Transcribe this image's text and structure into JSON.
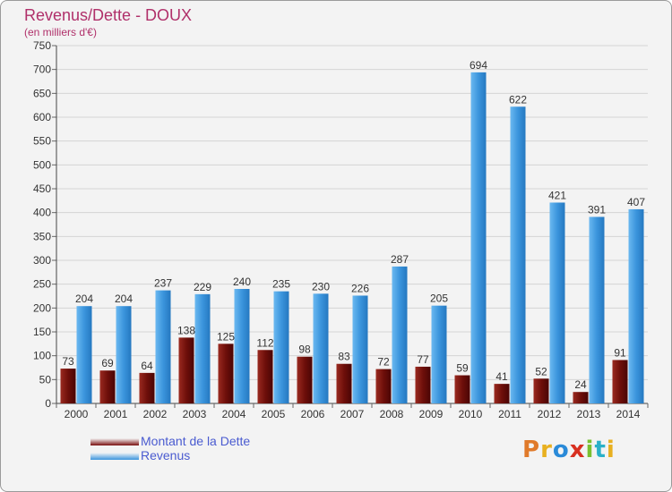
{
  "header": {
    "title": "Revenus/Dette - DOUX",
    "subtitle": "(en milliers d'€)"
  },
  "legend": {
    "items": [
      {
        "label": "Montant de la Dette",
        "color": "#7a1010"
      },
      {
        "label": "Revenus",
        "color": "#3b95dd"
      }
    ]
  },
  "logo": {
    "text": "Proxiti",
    "colors": [
      "#e07a2a",
      "#e8b020",
      "#2a8ad8",
      "#d83020",
      "#7ac030",
      "#2ab0c8",
      "#e8b020"
    ]
  },
  "chart_data": {
    "type": "bar",
    "categories": [
      "2000",
      "2001",
      "2002",
      "2003",
      "2004",
      "2005",
      "2006",
      "2007",
      "2008",
      "2009",
      "2010",
      "2011",
      "2012",
      "2013",
      "2014"
    ],
    "series": [
      {
        "name": "Montant de la Dette",
        "color": "#7a1010",
        "values": [
          73,
          69,
          64,
          138,
          125,
          112,
          98,
          83,
          72,
          77,
          59,
          41,
          52,
          24,
          91
        ]
      },
      {
        "name": "Revenus",
        "color": "#3b95dd",
        "values": [
          204,
          204,
          237,
          229,
          240,
          235,
          230,
          226,
          287,
          205,
          694,
          622,
          421,
          391,
          407
        ]
      }
    ],
    "ylim": [
      0,
      750
    ],
    "yticks": [
      0,
      50,
      100,
      150,
      200,
      250,
      300,
      350,
      400,
      450,
      500,
      550,
      600,
      650,
      700,
      750
    ],
    "grid": true
  }
}
